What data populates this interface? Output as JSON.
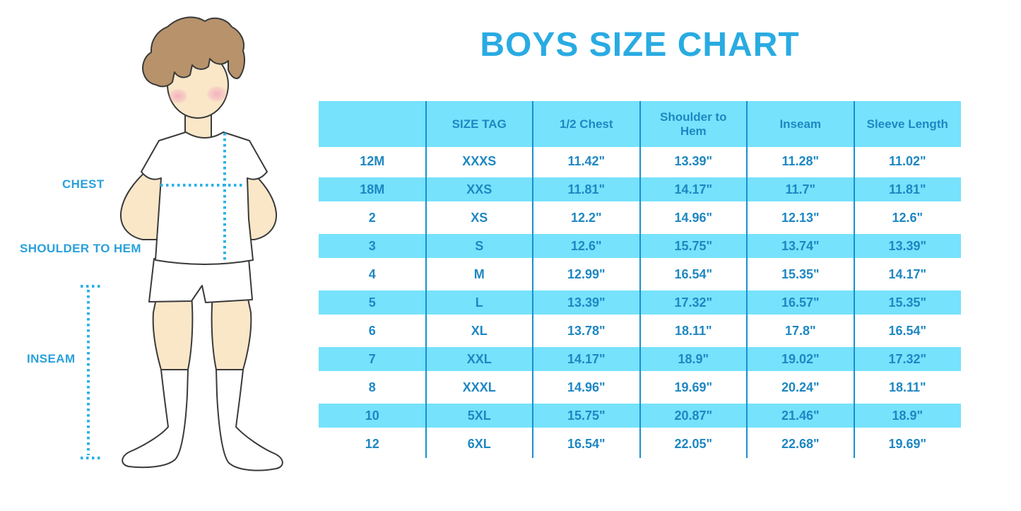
{
  "title": "BOYS SIZE CHART",
  "figure": {
    "description": "cartoon-boy-in-white-tshirt-shorts-and-socks",
    "labels": {
      "chest": "CHEST",
      "shoulder_to_hem": "SHOULDER TO HEM",
      "inseam": "INSEAM"
    }
  },
  "chart_data": {
    "type": "table",
    "title": "BOYS SIZE CHART",
    "columns": [
      "",
      "SIZE TAG",
      "1/2 Chest",
      "Shoulder to Hem",
      "Inseam",
      "Sleeve Length"
    ],
    "rows": [
      [
        "12M",
        "XXXS",
        "11.42\"",
        "13.39\"",
        "11.28\"",
        "11.02\""
      ],
      [
        "18M",
        "XXS",
        "11.81\"",
        "14.17\"",
        "11.7\"",
        "11.81\""
      ],
      [
        "2",
        "XS",
        "12.2\"",
        "14.96\"",
        "12.13\"",
        "12.6\""
      ],
      [
        "3",
        "S",
        "12.6\"",
        "15.75\"",
        "13.74\"",
        "13.39\""
      ],
      [
        "4",
        "M",
        "12.99\"",
        "16.54\"",
        "15.35\"",
        "14.17\""
      ],
      [
        "5",
        "L",
        "13.39\"",
        "17.32\"",
        "16.57\"",
        "15.35\""
      ],
      [
        "6",
        "XL",
        "13.78\"",
        "18.11\"",
        "17.8\"",
        "16.54\""
      ],
      [
        "7",
        "XXL",
        "14.17\"",
        "18.9\"",
        "19.02\"",
        "17.32\""
      ],
      [
        "8",
        "XXXL",
        "14.96\"",
        "19.69\"",
        "20.24\"",
        "18.11\""
      ],
      [
        "10",
        "5XL",
        "15.75\"",
        "20.87\"",
        "21.46\"",
        "18.9\""
      ],
      [
        "12",
        "6XL",
        "16.54\"",
        "22.05\"",
        "22.68\"",
        "19.69\""
      ]
    ],
    "row_striping": "alternating white and light blue, starting white",
    "grid": "vertical column dividers only"
  },
  "colors": {
    "title_blue": "#29ABE2",
    "table_text_blue": "#1E87C2",
    "row_band_blue": "#76E2FC",
    "grid_line_blue": "#1890CE",
    "label_blue": "#29A0DB",
    "dotted_line_blue": "#2BB2E5",
    "skin": "#FAE7C8",
    "hair": "#B7926B",
    "blush": "#F2A9BE",
    "outline": "#3A3A3A"
  }
}
